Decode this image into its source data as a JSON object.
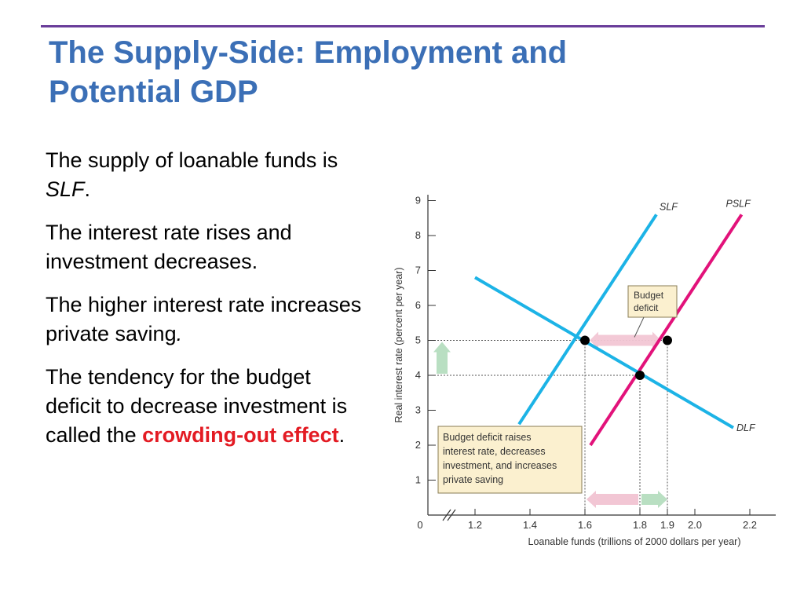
{
  "slide": {
    "title_line1": "The Supply-Side: Employment and",
    "title_line2": "Potential GDP",
    "paragraphs": [
      {
        "pre": "The supply of loanable funds is ",
        "em": "SLF",
        "post": "."
      },
      {
        "text": "The interest rate rises and investment decreases."
      },
      {
        "pre": "The higher interest rate increases private saving",
        "em": ".",
        "post": ""
      },
      {
        "pre": "The tendency for the budget deficit to decrease investment is called the ",
        "highlight": "crowding-out effect",
        "post": "."
      }
    ],
    "colors": {
      "title": "#3b6fb6",
      "rule": "#6a3d9a",
      "highlight": "#e31b23"
    }
  },
  "chart_data": {
    "type": "line",
    "xlabel": "Loanable funds (trillions of 2000 dollars per year)",
    "ylabel": "Real interest rate (percent per year)",
    "xlim": [
      1.1,
      2.25
    ],
    "ylim": [
      0,
      9
    ],
    "x_ticks": [
      1.2,
      1.4,
      1.6,
      1.8,
      1.9,
      2.0,
      2.2
    ],
    "x_tick_labels": [
      "1.2",
      "1.4",
      "1.6",
      "1.8",
      "1.9",
      "2.0",
      "2.2"
    ],
    "x_origin_label": "0",
    "y_ticks": [
      1,
      2,
      3,
      4,
      5,
      6,
      7,
      8,
      9
    ],
    "y_tick_labels": [
      "1",
      "2",
      "3",
      "4",
      "5",
      "6",
      "7",
      "8",
      "9"
    ],
    "series": [
      {
        "name": "SLF",
        "color": "#1cb3e6",
        "points": [
          [
            1.36,
            2.6
          ],
          [
            1.86,
            8.6
          ]
        ]
      },
      {
        "name": "PSLF",
        "color": "#e2127a",
        "points": [
          [
            1.62,
            2.0
          ],
          [
            2.17,
            8.6
          ]
        ]
      },
      {
        "name": "DLF",
        "color": "#1cb3e6",
        "points": [
          [
            1.2,
            6.8
          ],
          [
            2.14,
            2.5
          ]
        ]
      }
    ],
    "equilibria": [
      {
        "x": 1.6,
        "y": 5
      },
      {
        "x": 1.9,
        "y": 5
      },
      {
        "x": 1.8,
        "y": 4
      }
    ],
    "annotations": {
      "budget_deficit": "Budget deficit",
      "note": [
        "Budget deficit raises",
        "interest rate, decreases",
        "investment, and increases",
        "private saving"
      ]
    },
    "arrow_colors": {
      "pink": "#f2c6d4",
      "green": "#b9dfc2"
    },
    "grid": false
  }
}
